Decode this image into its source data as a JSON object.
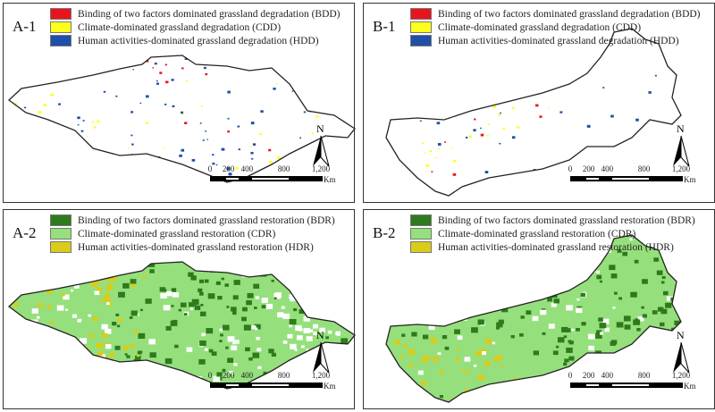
{
  "colors": {
    "bdd": "#e8141c",
    "cdd": "#ffff1e",
    "hdd": "#1f4fa8",
    "bdr": "#2e7a1c",
    "cdr": "#95e07c",
    "hdr": "#d9cc1a"
  },
  "panels": [
    {
      "label": "A-1",
      "legend": [
        {
          "text": "Binding of two factors dominated grassland degradation (BDD)",
          "color": "#e8141c"
        },
        {
          "text": "Climate-dominated grassland degradation (CDD)",
          "color": "#ffff1e"
        },
        {
          "text": "Human activities-dominated grassland degradation (HDD)",
          "color": "#1f4fa8"
        }
      ]
    },
    {
      "label": "B-1",
      "legend": [
        {
          "text": "Binding of two factors dominated grassland degradation (BDD)",
          "color": "#e8141c"
        },
        {
          "text": "Climate-dominated grassland degradation (CDD)",
          "color": "#ffff1e"
        },
        {
          "text": "Human activities-dominated grassland degradation (HDD)",
          "color": "#1f4fa8"
        }
      ]
    },
    {
      "label": "A-2",
      "legend": [
        {
          "text": "Binding of two factors dominated grassland restoration (BDR)",
          "color": "#2e7a1c"
        },
        {
          "text": "Climate-dominated grassland restoration (CDR)",
          "color": "#95e07c"
        },
        {
          "text": "Human activities-dominated grassland restoration (HDR)",
          "color": "#d9cc1a"
        }
      ]
    },
    {
      "label": "B-2",
      "legend": [
        {
          "text": "Binding of two factors dominated grassland restoration (BDR)",
          "color": "#2e7a1c"
        },
        {
          "text": "Climate-dominated grassland restoration (CDR)",
          "color": "#95e07c"
        },
        {
          "text": "Human activities-dominated grassland restoration (HDR)",
          "color": "#d9cc1a"
        }
      ]
    }
  ],
  "north": "N",
  "scale": {
    "ticks": [
      "0",
      "200",
      "400",
      "800",
      "1,200"
    ],
    "unit": "Km"
  }
}
